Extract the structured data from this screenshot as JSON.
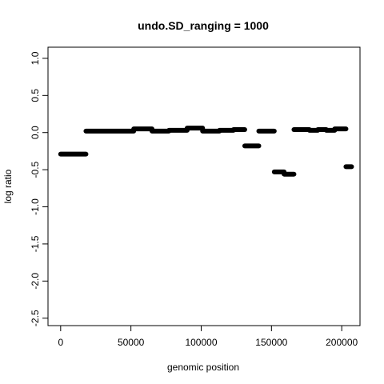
{
  "chart_data": {
    "type": "line",
    "title": "undo.SD_ranging =  1000",
    "xlabel": "genomic position",
    "ylabel": "log ratio",
    "xlim": [
      -9000,
      213000
    ],
    "ylim": [
      -2.6,
      1.15
    ],
    "xticks": [
      0,
      50000,
      100000,
      150000,
      200000
    ],
    "xtick_labels": [
      "0",
      "50000",
      "100000",
      "150000",
      "200000"
    ],
    "yticks": [
      -2.5,
      -2.0,
      -1.5,
      -1.0,
      -0.5,
      0.0,
      0.5,
      1.0
    ],
    "ytick_labels": [
      "-2.5",
      "-2.0",
      "-1.5",
      "-1.0",
      "-0.5",
      "0.0",
      "0.5",
      "1.0"
    ],
    "grid": false,
    "legend": "none",
    "series": [
      {
        "color": "#000000",
        "segments": [
          {
            "x": [
              0,
              18000
            ],
            "y": [
              -0.29,
              -0.29
            ]
          },
          {
            "x": [
              18000,
              52000
            ],
            "y": [
              0.02,
              0.02
            ]
          },
          {
            "x": [
              52000,
              65000
            ],
            "y": [
              0.05,
              0.05
            ]
          },
          {
            "x": [
              65000,
              77000
            ],
            "y": [
              0.02,
              0.02
            ]
          },
          {
            "x": [
              77000,
              90000
            ],
            "y": [
              0.03,
              0.03
            ]
          },
          {
            "x": [
              90000,
              101000
            ],
            "y": [
              0.06,
              0.06
            ]
          },
          {
            "x": [
              101000,
              113000
            ],
            "y": [
              0.02,
              0.02
            ]
          },
          {
            "x": [
              113000,
              123000
            ],
            "y": [
              0.03,
              0.03
            ]
          },
          {
            "x": [
              123000,
              131000
            ],
            "y": [
              0.04,
              0.04
            ]
          },
          {
            "x": [
              131000,
              141000
            ],
            "y": [
              -0.18,
              -0.18
            ]
          },
          {
            "x": [
              141000,
              152000
            ],
            "y": [
              0.02,
              0.02
            ]
          },
          {
            "x": [
              152000,
              159000
            ],
            "y": [
              -0.53,
              -0.53
            ]
          },
          {
            "x": [
              159000,
              166000
            ],
            "y": [
              -0.56,
              -0.56
            ]
          },
          {
            "x": [
              166000,
              177000
            ],
            "y": [
              0.04,
              0.04
            ]
          },
          {
            "x": [
              177000,
              183000
            ],
            "y": [
              0.03,
              0.03
            ]
          },
          {
            "x": [
              183000,
              189000
            ],
            "y": [
              0.04,
              0.04
            ]
          },
          {
            "x": [
              189000,
              195000
            ],
            "y": [
              0.03,
              0.03
            ]
          },
          {
            "x": [
              195000,
              203000
            ],
            "y": [
              0.05,
              0.05
            ]
          },
          {
            "x": [
              203000,
              207000
            ],
            "y": [
              -0.46,
              -0.46
            ]
          }
        ]
      }
    ]
  }
}
